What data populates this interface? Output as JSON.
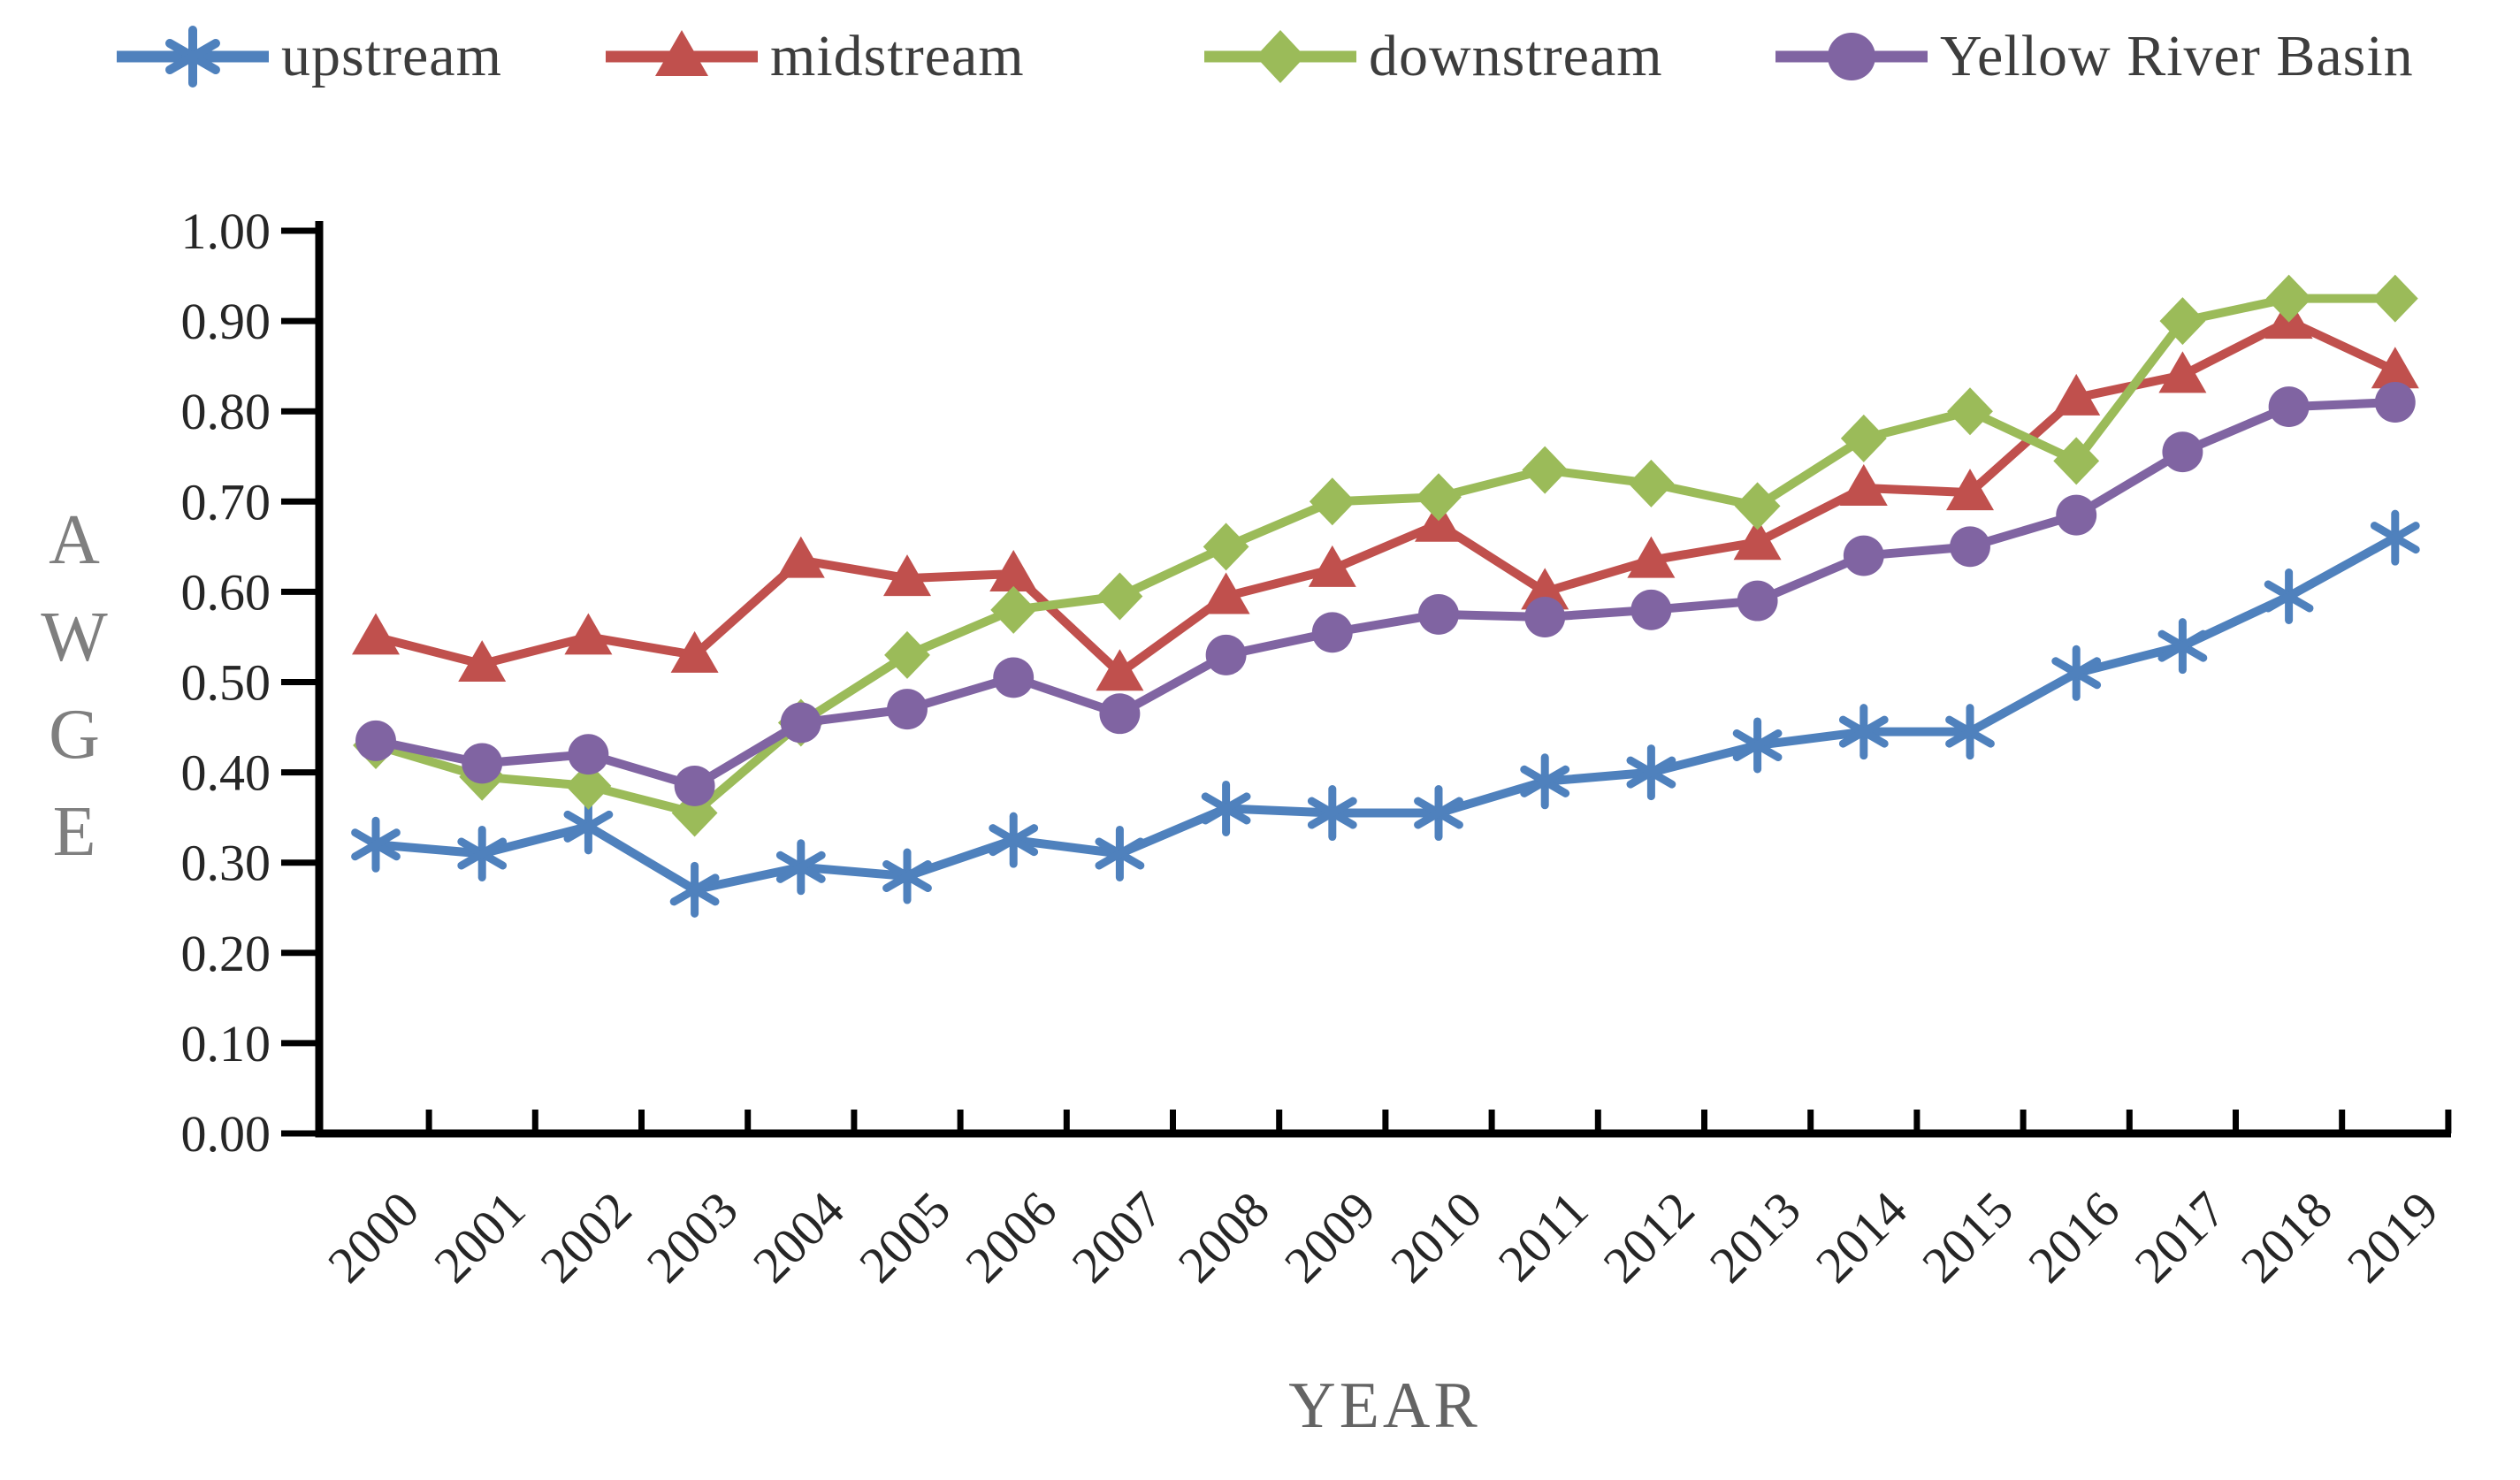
{
  "chart_data": {
    "type": "line",
    "title": "",
    "xlabel": "YEAR",
    "ylabel": "AWGE",
    "ylim": [
      0.0,
      1.0
    ],
    "y_tick_step": 0.1,
    "y_ticks": [
      "0.00",
      "0.10",
      "0.20",
      "0.30",
      "0.40",
      "0.50",
      "0.60",
      "0.70",
      "0.80",
      "0.90",
      "1.00"
    ],
    "grid": false,
    "legend_position": "top",
    "categories": [
      2000,
      2001,
      2002,
      2003,
      2004,
      2005,
      2006,
      2007,
      2008,
      2009,
      2010,
      2011,
      2012,
      2013,
      2014,
      2015,
      2016,
      2017,
      2018,
      2019
    ],
    "series": [
      {
        "name": "upstream",
        "color": "#4F81BD",
        "marker": "asterisk",
        "values": [
          0.32,
          0.31,
          0.34,
          0.27,
          0.295,
          0.285,
          0.325,
          0.31,
          0.36,
          0.355,
          0.355,
          0.39,
          0.4,
          0.43,
          0.445,
          0.445,
          0.51,
          0.54,
          0.595,
          0.66
        ]
      },
      {
        "name": "midstream",
        "color": "#C0504D",
        "marker": "triangle",
        "values": [
          0.55,
          0.52,
          0.55,
          0.53,
          0.635,
          0.615,
          0.62,
          0.51,
          0.595,
          0.625,
          0.675,
          0.6,
          0.635,
          0.655,
          0.715,
          0.71,
          0.815,
          0.84,
          0.9,
          0.845
        ]
      },
      {
        "name": "downstream",
        "color": "#9BBB59",
        "marker": "diamond",
        "values": [
          0.43,
          0.395,
          0.385,
          0.355,
          0.455,
          0.53,
          0.58,
          0.595,
          0.65,
          0.7,
          0.705,
          0.735,
          0.72,
          0.695,
          0.77,
          0.8,
          0.745,
          0.9,
          0.925,
          0.925
        ]
      },
      {
        "name": "Yellow River Basin",
        "color": "#8064A2",
        "marker": "circle",
        "values": [
          0.435,
          0.41,
          0.42,
          0.385,
          0.455,
          0.47,
          0.505,
          0.465,
          0.53,
          0.555,
          0.575,
          0.572,
          0.58,
          0.59,
          0.64,
          0.65,
          0.685,
          0.755,
          0.805,
          0.81
        ]
      }
    ]
  }
}
